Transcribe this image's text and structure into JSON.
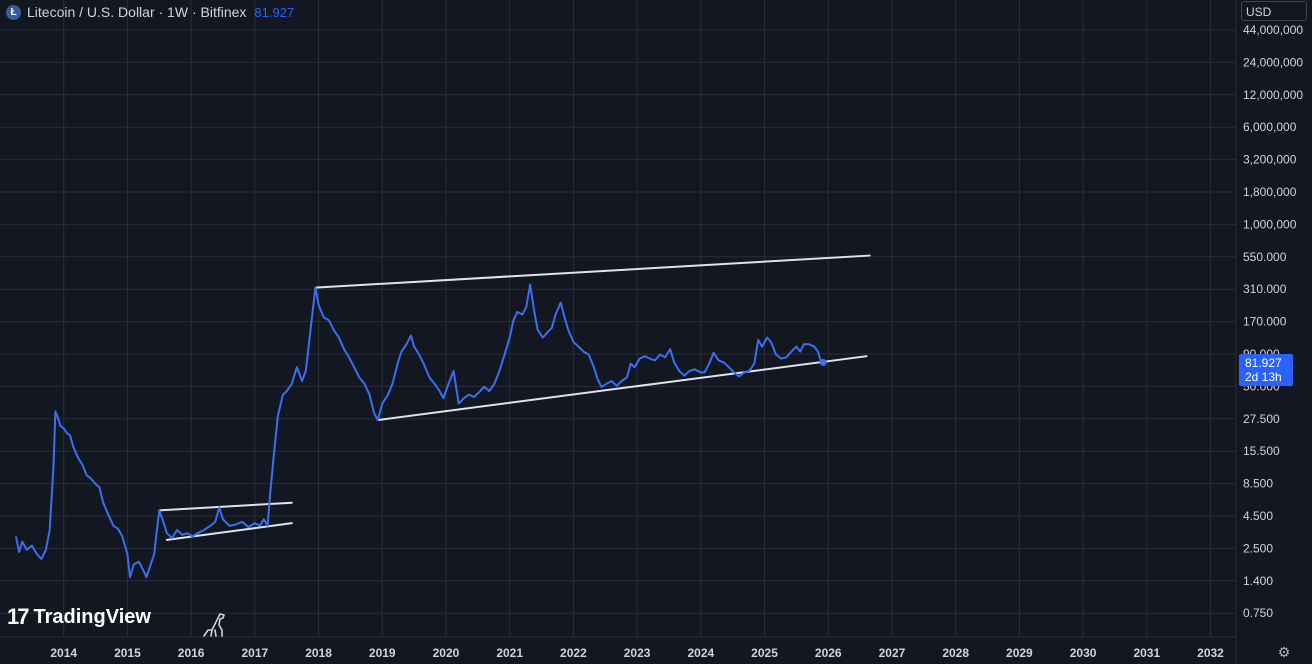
{
  "legend": {
    "coin_icon": "litecoin-icon",
    "title": "Litecoin / U.S. Dollar · 1W · Bitfinex",
    "last_price": "81.927"
  },
  "currency": "USD",
  "price_tag": {
    "price": "81.927",
    "countdown": "2d 13h"
  },
  "branding": {
    "name": "TradingView",
    "mark": "17"
  },
  "colors": {
    "background": "#131722",
    "grid": "#2a2e39",
    "series": "#3a6ff0",
    "trendline": "#e0e3eb",
    "accent": "#2962ff"
  },
  "chart_data": {
    "type": "line",
    "title": "Litecoin / U.S. Dollar · 1W · Bitfinex",
    "scale": "log",
    "xlim": [
      2013.0,
      2032.4
    ],
    "ylim": [
      0.45,
      60000000
    ],
    "x_ticks": [
      "2014",
      "2015",
      "2016",
      "2017",
      "2018",
      "2019",
      "2020",
      "2021",
      "2022",
      "2023",
      "2024",
      "2025",
      "2026",
      "2027",
      "2028",
      "2029",
      "2030",
      "2031",
      "2032"
    ],
    "y_ticks": [
      "44,000,000",
      "24,000,000",
      "12,000,000",
      "6,000,000",
      "3,200,000",
      "1,800,000",
      "1,000,000",
      "550.000",
      "310.000",
      "170.000",
      "90.000",
      "50.000",
      "27.500",
      "15.500",
      "8.500",
      "4.500",
      "2.500",
      "1.400",
      "0.750"
    ],
    "grid": true,
    "series": [
      {
        "points": [
          [
            2013.25,
            3.2
          ],
          [
            2013.3,
            2.4
          ],
          [
            2013.35,
            2.9
          ],
          [
            2013.42,
            2.5
          ],
          [
            2013.5,
            2.7
          ],
          [
            2013.58,
            2.3
          ],
          [
            2013.65,
            2.1
          ],
          [
            2013.72,
            2.5
          ],
          [
            2013.78,
            3.6
          ],
          [
            2013.84,
            12
          ],
          [
            2013.87,
            33
          ],
          [
            2013.91,
            29
          ],
          [
            2013.95,
            25
          ],
          [
            2014.0,
            24
          ],
          [
            2014.05,
            22
          ],
          [
            2014.1,
            21
          ],
          [
            2014.15,
            17
          ],
          [
            2014.22,
            14
          ],
          [
            2014.3,
            12
          ],
          [
            2014.36,
            10
          ],
          [
            2014.42,
            9.5
          ],
          [
            2014.5,
            8.5
          ],
          [
            2014.56,
            8
          ],
          [
            2014.62,
            6
          ],
          [
            2014.7,
            4.8
          ],
          [
            2014.78,
            3.9
          ],
          [
            2014.85,
            3.7
          ],
          [
            2014.92,
            3.2
          ],
          [
            2015.0,
            2.3
          ],
          [
            2015.04,
            1.5
          ],
          [
            2015.1,
            1.9
          ],
          [
            2015.18,
            2.0
          ],
          [
            2015.25,
            1.7
          ],
          [
            2015.3,
            1.5
          ],
          [
            2015.35,
            1.8
          ],
          [
            2015.42,
            2.3
          ],
          [
            2015.46,
            3.5
          ],
          [
            2015.5,
            5.2
          ],
          [
            2015.55,
            4.4
          ],
          [
            2015.62,
            3.4
          ],
          [
            2015.7,
            3.1
          ],
          [
            2015.78,
            3.6
          ],
          [
            2015.86,
            3.3
          ],
          [
            2015.94,
            3.4
          ],
          [
            2016.02,
            3.2
          ],
          [
            2016.1,
            3.4
          ],
          [
            2016.2,
            3.6
          ],
          [
            2016.3,
            3.9
          ],
          [
            2016.38,
            4.2
          ],
          [
            2016.44,
            5.5
          ],
          [
            2016.5,
            4.4
          ],
          [
            2016.6,
            3.9
          ],
          [
            2016.7,
            4.0
          ],
          [
            2016.8,
            4.2
          ],
          [
            2016.9,
            3.8
          ],
          [
            2017.0,
            4.1
          ],
          [
            2017.08,
            3.9
          ],
          [
            2017.14,
            4.4
          ],
          [
            2017.2,
            3.9
          ],
          [
            2017.24,
            7
          ],
          [
            2017.3,
            15
          ],
          [
            2017.36,
            30
          ],
          [
            2017.44,
            45
          ],
          [
            2017.5,
            48
          ],
          [
            2017.58,
            55
          ],
          [
            2017.66,
            75
          ],
          [
            2017.74,
            58
          ],
          [
            2017.8,
            70
          ],
          [
            2017.88,
            160
          ],
          [
            2017.95,
            330
          ],
          [
            2018.0,
            240
          ],
          [
            2018.08,
            190
          ],
          [
            2018.16,
            180
          ],
          [
            2018.24,
            150
          ],
          [
            2018.32,
            130
          ],
          [
            2018.4,
            105
          ],
          [
            2018.48,
            90
          ],
          [
            2018.56,
            75
          ],
          [
            2018.64,
            62
          ],
          [
            2018.72,
            55
          ],
          [
            2018.8,
            45
          ],
          [
            2018.87,
            32
          ],
          [
            2018.93,
            28
          ],
          [
            2019.0,
            38
          ],
          [
            2019.08,
            44
          ],
          [
            2019.16,
            55
          ],
          [
            2019.24,
            80
          ],
          [
            2019.3,
            100
          ],
          [
            2019.38,
            115
          ],
          [
            2019.45,
            135
          ],
          [
            2019.5,
            110
          ],
          [
            2019.58,
            95
          ],
          [
            2019.66,
            78
          ],
          [
            2019.74,
            62
          ],
          [
            2019.82,
            55
          ],
          [
            2019.9,
            48
          ],
          [
            2019.96,
            42
          ],
          [
            2020.04,
            55
          ],
          [
            2020.12,
            70
          ],
          [
            2020.2,
            38
          ],
          [
            2020.28,
            42
          ],
          [
            2020.36,
            45
          ],
          [
            2020.44,
            43
          ],
          [
            2020.52,
            47
          ],
          [
            2020.6,
            52
          ],
          [
            2020.68,
            48
          ],
          [
            2020.76,
            55
          ],
          [
            2020.84,
            70
          ],
          [
            2020.92,
            95
          ],
          [
            2021.0,
            130
          ],
          [
            2021.06,
            180
          ],
          [
            2021.12,
            210
          ],
          [
            2021.2,
            200
          ],
          [
            2021.26,
            230
          ],
          [
            2021.32,
            350
          ],
          [
            2021.38,
            220
          ],
          [
            2021.44,
            150
          ],
          [
            2021.52,
            130
          ],
          [
            2021.6,
            145
          ],
          [
            2021.66,
            155
          ],
          [
            2021.72,
            200
          ],
          [
            2021.8,
            250
          ],
          [
            2021.86,
            190
          ],
          [
            2021.92,
            150
          ],
          [
            2022.0,
            120
          ],
          [
            2022.08,
            110
          ],
          [
            2022.16,
            100
          ],
          [
            2022.24,
            95
          ],
          [
            2022.32,
            75
          ],
          [
            2022.38,
            60
          ],
          [
            2022.44,
            52
          ],
          [
            2022.52,
            55
          ],
          [
            2022.6,
            58
          ],
          [
            2022.68,
            53
          ],
          [
            2022.76,
            58
          ],
          [
            2022.84,
            62
          ],
          [
            2022.9,
            80
          ],
          [
            2022.96,
            75
          ],
          [
            2023.04,
            88
          ],
          [
            2023.12,
            92
          ],
          [
            2023.2,
            88
          ],
          [
            2023.28,
            85
          ],
          [
            2023.36,
            95
          ],
          [
            2023.44,
            90
          ],
          [
            2023.52,
            105
          ],
          [
            2023.58,
            82
          ],
          [
            2023.66,
            70
          ],
          [
            2023.74,
            64
          ],
          [
            2023.82,
            70
          ],
          [
            2023.9,
            72
          ],
          [
            2024.0,
            68
          ],
          [
            2024.06,
            68
          ],
          [
            2024.14,
            82
          ],
          [
            2024.2,
            98
          ],
          [
            2024.28,
            85
          ],
          [
            2024.36,
            82
          ],
          [
            2024.44,
            75
          ],
          [
            2024.52,
            68
          ],
          [
            2024.6,
            63
          ],
          [
            2024.68,
            68
          ],
          [
            2024.76,
            70
          ],
          [
            2024.84,
            80
          ],
          [
            2024.9,
            125
          ],
          [
            2024.96,
            110
          ],
          [
            2025.04,
            130
          ],
          [
            2025.1,
            120
          ],
          [
            2025.18,
            95
          ],
          [
            2025.26,
            88
          ],
          [
            2025.34,
            90
          ],
          [
            2025.42,
            100
          ],
          [
            2025.5,
            110
          ],
          [
            2025.56,
            100
          ],
          [
            2025.62,
            115
          ],
          [
            2025.7,
            115
          ],
          [
            2025.78,
            110
          ],
          [
            2025.84,
            100
          ],
          [
            2025.88,
            85
          ],
          [
            2025.92,
            82
          ]
        ]
      }
    ],
    "trendlines": [
      [
        [
          2015.5,
          5.2
        ],
        [
          2017.58,
          6.0
        ]
      ],
      [
        [
          2015.62,
          3.0
        ],
        [
          2017.58,
          4.1
        ]
      ],
      [
        [
          2017.95,
          330
        ],
        [
          2026.65,
          600
        ]
      ],
      [
        [
          2018.93,
          28
        ],
        [
          2026.6,
          92
        ]
      ]
    ]
  }
}
